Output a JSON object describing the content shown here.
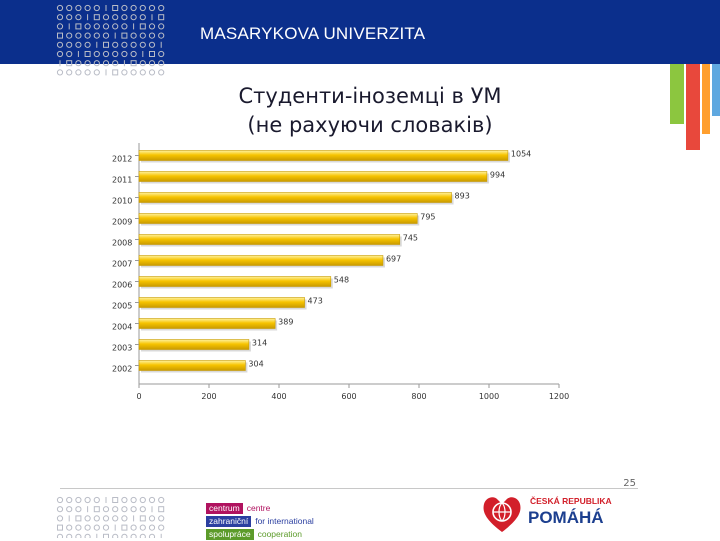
{
  "header": {
    "university_name": "MASARYKOVA UNIVERZITA",
    "bg_color": "#0b2f8c"
  },
  "title": {
    "line1": "Студенти-іноземці в УМ",
    "line2": "(не рахуючи словаків)"
  },
  "chart_data": {
    "type": "bar",
    "orientation": "horizontal",
    "categories": [
      "2012",
      "2011",
      "2010",
      "2009",
      "2008",
      "2007",
      "2006",
      "2005",
      "2004",
      "2003",
      "2002"
    ],
    "values": [
      1054,
      994,
      893,
      795,
      745,
      697,
      548,
      473,
      389,
      314,
      304
    ],
    "title": "Студенти-іноземці в УМ (не рахуючи словаків)",
    "xlabel": "",
    "ylabel": "",
    "xlim": [
      0,
      1200
    ],
    "xticks": [
      "0",
      "200",
      "400",
      "600",
      "800",
      "1000",
      "1200"
    ],
    "bar_color": "#f7c400",
    "grid": false,
    "legend": "none"
  },
  "page_number": "25",
  "footer": {
    "cooperation_logo": {
      "rows": [
        {
          "box": "centrum",
          "text": "centre",
          "box_color": "#b0125f",
          "text_color": "#b0125f"
        },
        {
          "box": "zahraniční",
          "text": "for international",
          "box_color": "#2b3fa0",
          "text_color": "#2b3fa0"
        },
        {
          "box": "spolupráce",
          "text": "cooperation",
          "box_color": "#5c9b2a",
          "text_color": "#5c9b2a"
        }
      ]
    },
    "cz_logo": {
      "line1": "ČESKÁ REPUBLIKA",
      "line2": "POMÁHÁ"
    }
  },
  "icons": [
    "dot-grid-icon",
    "heart-globe-icon"
  ]
}
